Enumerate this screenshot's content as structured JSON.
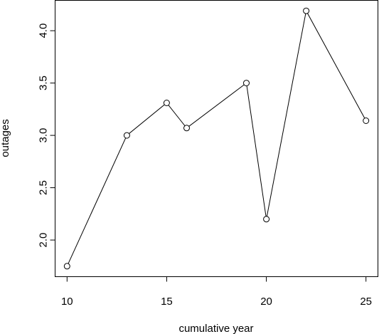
{
  "chart_data": {
    "type": "line",
    "xlabel": "cumulative year",
    "ylabel": "outages",
    "x": [
      10,
      13,
      15,
      16,
      19,
      20,
      22,
      25
    ],
    "series": [
      {
        "values": [
          1.75,
          3.0,
          3.31,
          3.07,
          3.5,
          2.2,
          4.19,
          3.14
        ]
      }
    ],
    "x_ticks": [
      "10",
      "15",
      "20",
      "25"
    ],
    "y_ticks": [
      "2.0",
      "2.5",
      "3.0",
      "3.5",
      "4.0"
    ],
    "xlim": [
      9.4,
      25.6
    ],
    "ylim": [
      1.65,
      4.29
    ],
    "markers": "open-circle",
    "grid": false,
    "legend": "none"
  }
}
